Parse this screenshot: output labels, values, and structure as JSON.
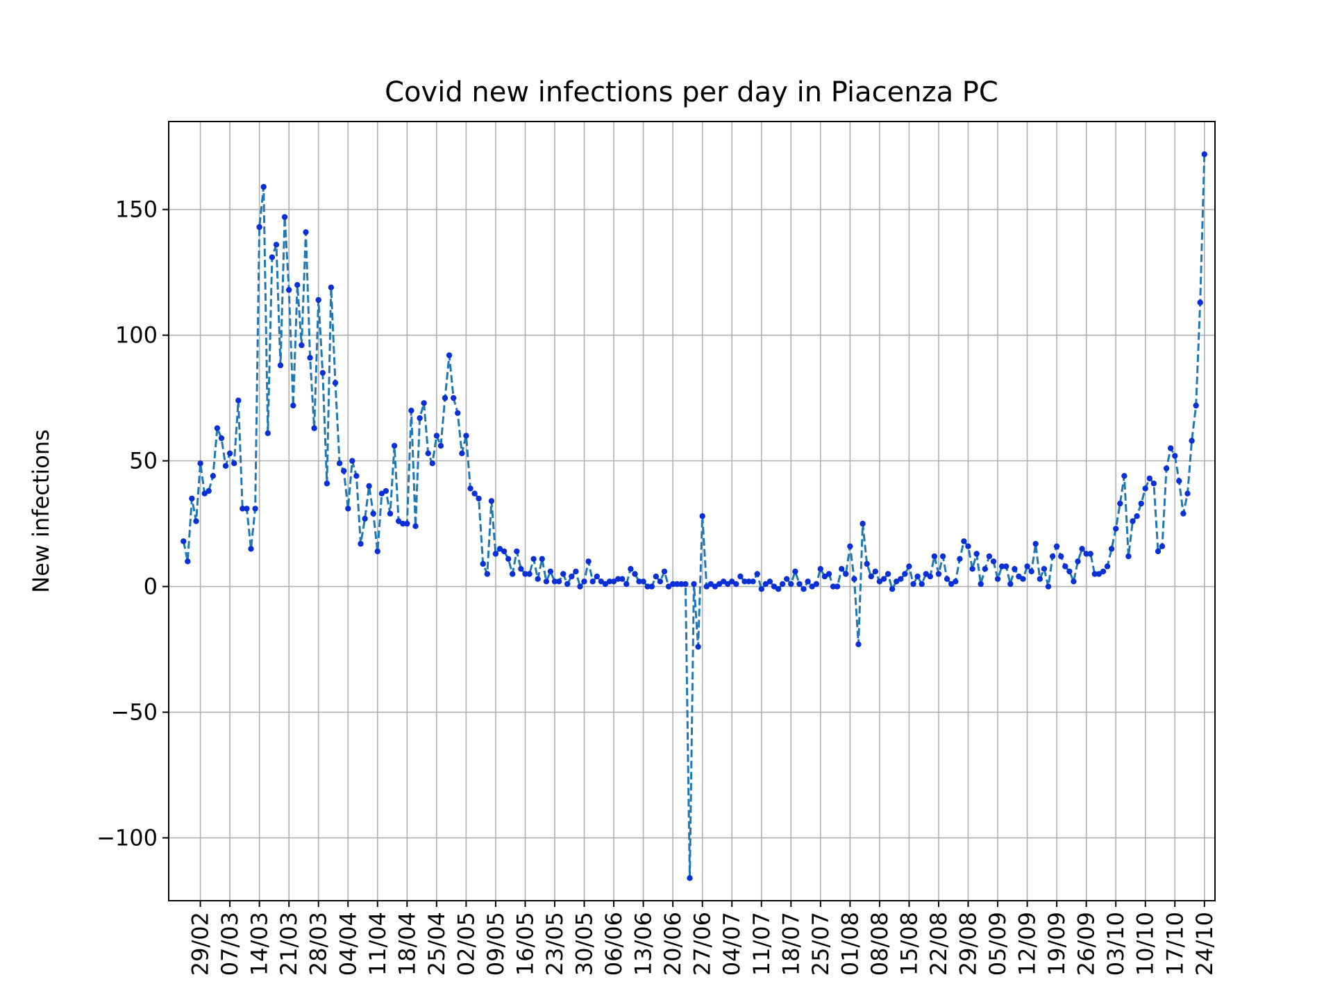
{
  "chart_data": {
    "type": "line",
    "title": "Covid new infections per day in Piacenza PC",
    "xlabel": "",
    "ylabel": "New infections",
    "ylim": [
      -125,
      185
    ],
    "yticks": [
      -100,
      -50,
      0,
      50,
      100,
      150
    ],
    "ytick_labels": [
      "−100",
      "−50",
      "0",
      "50",
      "100",
      "150"
    ],
    "x_start": "2020-02-25",
    "x_end": "2020-10-24",
    "xticks": [
      "29/02",
      "07/03",
      "14/03",
      "21/03",
      "28/03",
      "04/04",
      "11/04",
      "18/04",
      "25/04",
      "02/05",
      "09/05",
      "16/05",
      "23/05",
      "30/05",
      "06/06",
      "13/06",
      "20/06",
      "27/06",
      "04/07",
      "11/07",
      "18/07",
      "25/07",
      "01/08",
      "08/08",
      "15/08",
      "22/08",
      "29/08",
      "05/09",
      "12/09",
      "19/09",
      "26/09",
      "03/10",
      "10/10",
      "17/10",
      "24/10"
    ],
    "grid": true,
    "line_color": "#1f77b4",
    "marker_color": "#0b2fd6",
    "line_style": "dashed",
    "series": [
      {
        "values": [
          18,
          10,
          35,
          26,
          49,
          37,
          38,
          44,
          63,
          59,
          48,
          53,
          49,
          74,
          31,
          31,
          15,
          31,
          143,
          159,
          61,
          131,
          136,
          88,
          147,
          118,
          72,
          120,
          96,
          141,
          91,
          63,
          114,
          85,
          41,
          119,
          81,
          49,
          46,
          31,
          50,
          44,
          17,
          27,
          40,
          29,
          14,
          37,
          38,
          29,
          56,
          26,
          25,
          25,
          70,
          24,
          67,
          73,
          53,
          49,
          60,
          56,
          75,
          92,
          75,
          69,
          53,
          60,
          39,
          37,
          35,
          9,
          5,
          34,
          13,
          15,
          14,
          11,
          5,
          14,
          7,
          5,
          5,
          11,
          3,
          11,
          2,
          6,
          2,
          2,
          5,
          1,
          4,
          6,
          0,
          2,
          10,
          2,
          4,
          2,
          1,
          2,
          2,
          3,
          3,
          1,
          7,
          5,
          2,
          2,
          0,
          0,
          4,
          2,
          6,
          0,
          1,
          1,
          1,
          1,
          -116,
          1,
          -24,
          28,
          0,
          1,
          0,
          1,
          2,
          1,
          2,
          1,
          4,
          2,
          2,
          2,
          5,
          -1,
          1,
          2,
          0,
          -1,
          1,
          3,
          1,
          6,
          1,
          -1,
          2,
          0,
          1,
          7,
          4,
          5,
          0,
          0,
          7,
          5,
          16,
          3,
          -23,
          25,
          9,
          4,
          6,
          2,
          3,
          5,
          -1,
          2,
          3,
          5,
          8,
          1,
          4,
          1,
          5,
          4,
          12,
          5,
          12,
          3,
          1,
          2,
          11,
          18,
          16,
          7,
          13,
          1,
          7,
          12,
          10,
          3,
          8,
          8,
          1,
          7,
          4,
          3,
          8,
          6,
          17,
          3,
          7,
          0,
          12,
          16,
          12,
          8,
          6,
          2,
          10,
          15,
          13,
          13,
          5,
          5,
          6,
          8,
          15,
          23,
          33,
          44,
          12,
          26,
          28,
          33,
          39,
          43,
          41,
          14,
          16,
          47,
          55,
          52,
          42,
          29,
          37,
          58,
          72,
          113,
          172
        ]
      }
    ]
  }
}
